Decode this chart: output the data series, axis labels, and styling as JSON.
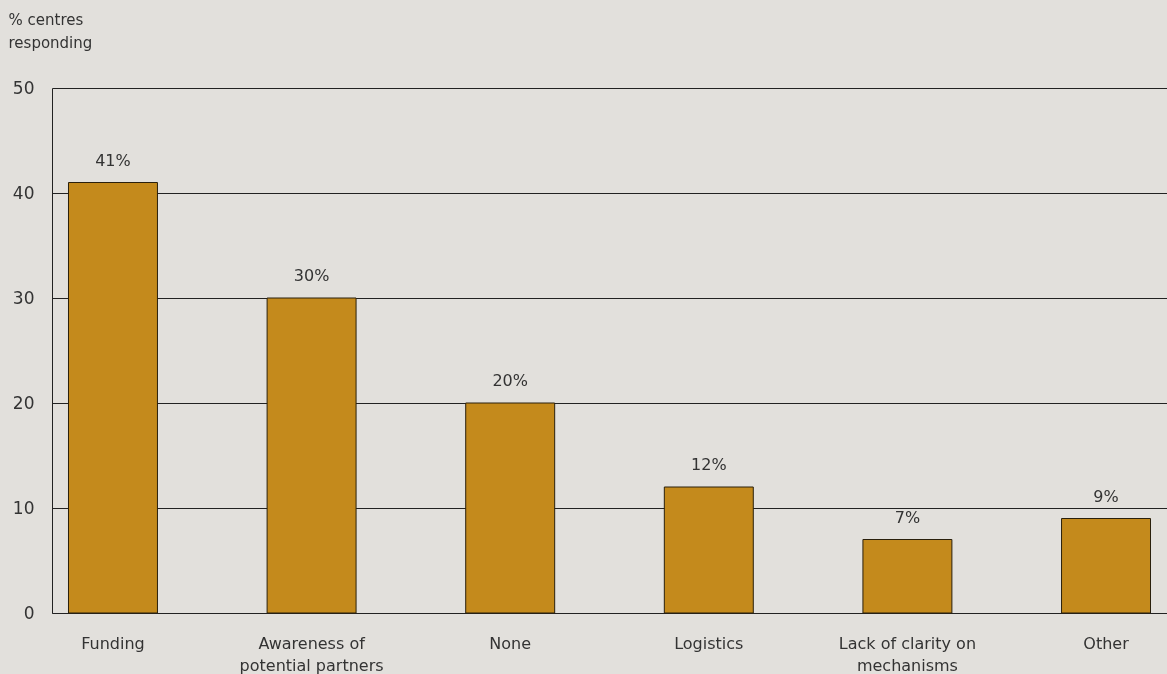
{
  "chart_data": {
    "type": "bar",
    "ylabel": "% centres responding",
    "categories": [
      "Funding",
      "Awareness of potential partners",
      "None",
      "Logistics",
      "Lack of clarity on mechanisms",
      "Other"
    ],
    "values": [
      41,
      30,
      20,
      12,
      7,
      9
    ],
    "value_labels": [
      "41%",
      "30%",
      "20%",
      "12%",
      "7%",
      "9%"
    ],
    "color": "#c48a1c",
    "ylim": [
      0,
      50
    ],
    "yticks": [
      0,
      10,
      20,
      30,
      40,
      50
    ],
    "grid": "y"
  }
}
